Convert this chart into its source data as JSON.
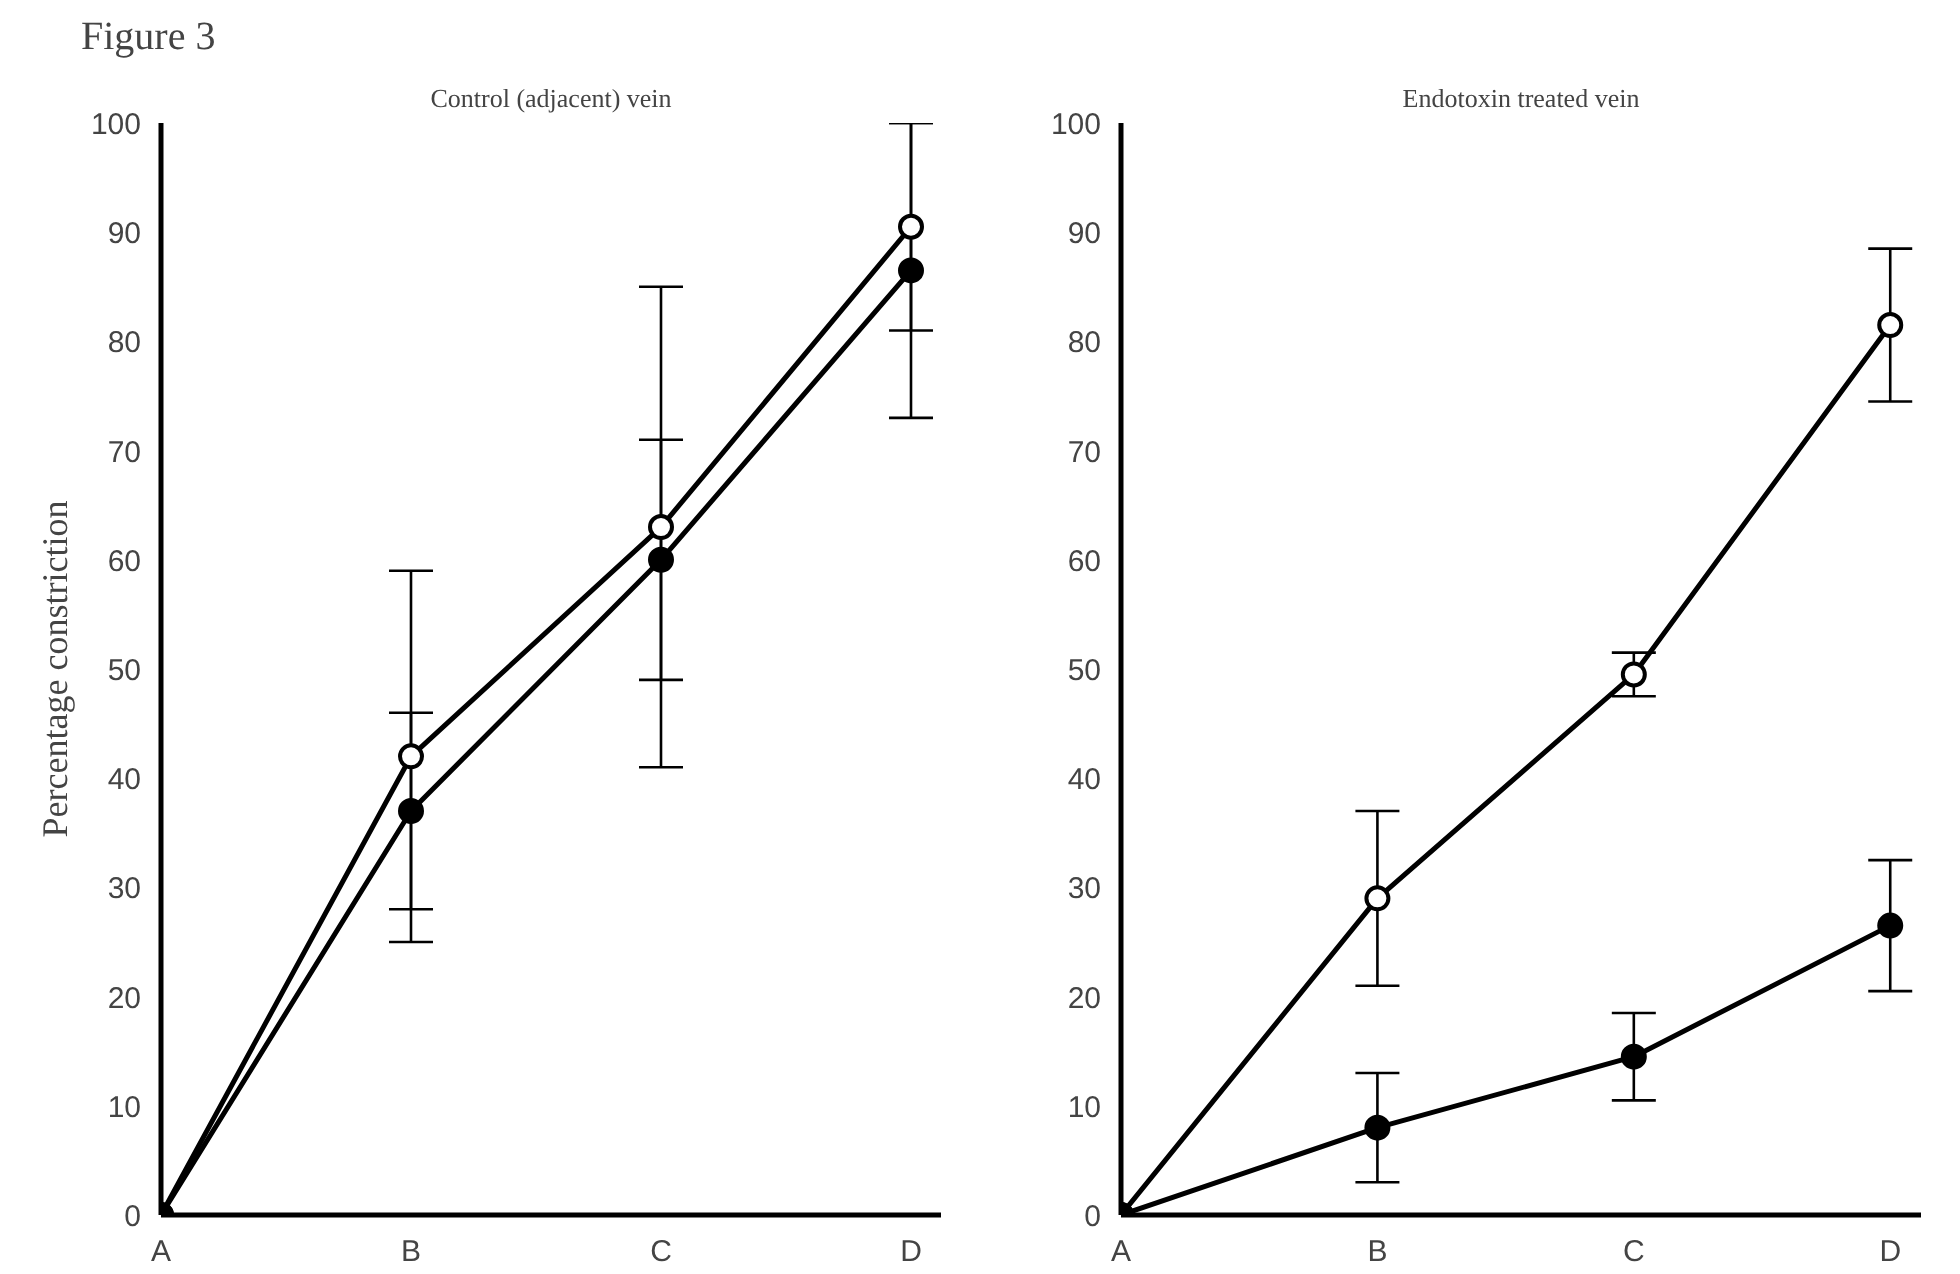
{
  "chart_data": [
    {
      "type": "line",
      "title": "Control (adjacent) vein",
      "ylabel": "Percentage constriction",
      "annotations": [
        "Figure 3"
      ],
      "categories": [
        "A",
        "B",
        "C",
        "D"
      ],
      "ylim": [
        0,
        100
      ],
      "yticks": [
        0,
        10,
        20,
        30,
        40,
        50,
        60,
        70,
        80,
        90,
        100
      ],
      "grid": false,
      "marker": "circle",
      "line_style": "solid",
      "series": [
        {
          "color": "#000000",
          "colors": [
            "#000000",
            "#ffffff",
            "#ffffff",
            "#ffffff"
          ],
          "values": [
            0,
            42,
            63,
            90.5
          ],
          "errors": [
            null,
            17,
            22,
            9.5
          ]
        },
        {
          "color": "#000000",
          "colors": [
            "#000000",
            "#000000",
            "#000000",
            "#000000"
          ],
          "values": [
            0,
            37,
            60,
            86.5
          ],
          "errors": [
            null,
            9,
            11,
            13.5
          ]
        }
      ]
    },
    {
      "type": "line",
      "title": "Endotoxin treated vein",
      "categories": [
        "A",
        "B",
        "C",
        "D"
      ],
      "ylim": [
        0,
        100
      ],
      "yticks": [
        0,
        10,
        20,
        30,
        40,
        50,
        60,
        70,
        80,
        90,
        100
      ],
      "grid": false,
      "marker": "circle",
      "line_style": "solid",
      "series": [
        {
          "color": "#000000",
          "colors": [
            "#000000",
            "#ffffff",
            "#ffffff",
            "#ffffff"
          ],
          "values": [
            0,
            29,
            49.5,
            81.5
          ],
          "errors": [
            null,
            8,
            2,
            7
          ]
        },
        {
          "color": "#000000",
          "colors": [
            "#000000",
            "#000000",
            "#000000",
            "#000000"
          ],
          "values": [
            0,
            8,
            14.5,
            26.5
          ],
          "errors": [
            null,
            5,
            4,
            6
          ]
        }
      ]
    }
  ]
}
